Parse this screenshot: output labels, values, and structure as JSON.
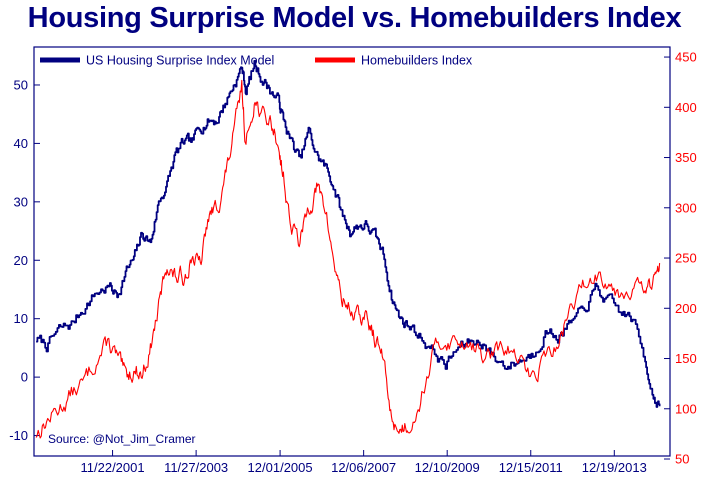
{
  "title": "Housing Surprise Model vs. Homebuilders Index",
  "source": "Source: @Not_Jim_Cramer",
  "colors": {
    "left_series": "#000080",
    "right_series": "#ff0000",
    "axis": "#000080",
    "background": "#ffffff"
  },
  "chart_data": {
    "type": "line",
    "title": "Housing Surprise Model vs. Homebuilders Index",
    "xlabel": "",
    "x_tick_labels": [
      "11/22/2001",
      "11/27/2003",
      "12/01/2005",
      "12/06/2007",
      "12/10/2009",
      "12/15/2011",
      "12/19/2013"
    ],
    "x_tick_years": [
      2001.89,
      2003.9,
      2005.92,
      2007.93,
      2009.94,
      2011.95,
      2013.96
    ],
    "xlim": [
      2000.0,
      2015.3
    ],
    "y_left": {
      "lim": [
        -13.5,
        56.5
      ],
      "ticks": [
        -10,
        0,
        10,
        20,
        30,
        40,
        50
      ]
    },
    "y_right": {
      "lim": [
        53,
        460
      ],
      "ticks": [
        50,
        100,
        150,
        200,
        250,
        300,
        350,
        400,
        450
      ]
    },
    "legend": [
      "US Housing Surprise Index Model",
      "Homebuilders Index"
    ],
    "legend_position": "top-left",
    "series": [
      {
        "name": "US Housing Surprise Index Model",
        "axis": "left",
        "x": [
          2000.05,
          2000.3,
          2000.6,
          2000.9,
          2001.2,
          2001.5,
          2001.8,
          2002.0,
          2002.2,
          2002.4,
          2002.6,
          2002.8,
          2003.0,
          2003.2,
          2003.4,
          2003.6,
          2003.8,
          2004.0,
          2004.2,
          2004.4,
          2004.6,
          2004.8,
          2005.0,
          2005.1,
          2005.3,
          2005.5,
          2005.7,
          2005.9,
          2006.0,
          2006.2,
          2006.4,
          2006.6,
          2006.8,
          2007.0,
          2007.2,
          2007.4,
          2007.6,
          2007.8,
          2008.0,
          2008.2,
          2008.4,
          2008.6,
          2008.8,
          2009.0,
          2009.3,
          2009.6,
          2009.9,
          2010.2,
          2010.5,
          2010.8,
          2011.1,
          2011.4,
          2011.7,
          2012.0,
          2012.3,
          2012.6,
          2012.9,
          2013.2,
          2013.5,
          2013.8,
          2014.1,
          2014.4,
          2014.7,
          2014.9,
          2015.05
        ],
        "y": [
          6.5,
          5.5,
          8.0,
          9.0,
          12.0,
          14.5,
          15.5,
          14.0,
          18.0,
          20.0,
          24.5,
          23.0,
          30.0,
          33.0,
          38.0,
          40.0,
          40.0,
          43.0,
          44.0,
          44.0,
          47.0,
          50.0,
          53.0,
          49.0,
          53.5,
          51.0,
          49.0,
          47.0,
          44.0,
          40.0,
          37.0,
          42.0,
          38.0,
          36.0,
          33.0,
          28.0,
          25.0,
          26.0,
          26.0,
          24.0,
          21.0,
          14.0,
          10.0,
          9.0,
          7.0,
          4.5,
          2.0,
          5.0,
          6.0,
          6.0,
          3.0,
          2.0,
          3.0,
          4.0,
          8.0,
          7.0,
          9.0,
          11.0,
          15.0,
          13.0,
          11.0,
          10.0,
          3.0,
          -3.0,
          -5.0
        ]
      },
      {
        "name": "Homebuilders Index",
        "axis": "right",
        "x": [
          2000.05,
          2000.3,
          2000.6,
          2000.9,
          2001.2,
          2001.5,
          2001.8,
          2002.0,
          2002.2,
          2002.4,
          2002.6,
          2002.8,
          2003.0,
          2003.2,
          2003.4,
          2003.6,
          2003.8,
          2004.0,
          2004.2,
          2004.4,
          2004.6,
          2004.8,
          2005.0,
          2005.1,
          2005.3,
          2005.5,
          2005.7,
          2005.9,
          2006.0,
          2006.2,
          2006.4,
          2006.6,
          2006.8,
          2007.0,
          2007.2,
          2007.4,
          2007.6,
          2007.8,
          2008.0,
          2008.2,
          2008.4,
          2008.6,
          2008.8,
          2009.0,
          2009.3,
          2009.6,
          2009.9,
          2010.2,
          2010.5,
          2010.8,
          2011.1,
          2011.4,
          2011.7,
          2012.0,
          2012.3,
          2012.6,
          2012.9,
          2013.2,
          2013.5,
          2013.8,
          2014.1,
          2014.4,
          2014.7,
          2014.9,
          2015.05
        ],
        "y": [
          75,
          88,
          100,
          115,
          125,
          150,
          165,
          150,
          130,
          140,
          135,
          160,
          200,
          245,
          230,
          230,
          255,
          240,
          290,
          300,
          330,
          370,
          420,
          360,
          410,
          390,
          385,
          360,
          330,
          280,
          265,
          300,
          320,
          300,
          250,
          210,
          200,
          190,
          190,
          170,
          150,
          90,
          80,
          85,
          110,
          155,
          170,
          165,
          170,
          150,
          155,
          160,
          145,
          130,
          155,
          160,
          200,
          220,
          235,
          230,
          215,
          225,
          215,
          225,
          245
        ]
      }
    ]
  }
}
